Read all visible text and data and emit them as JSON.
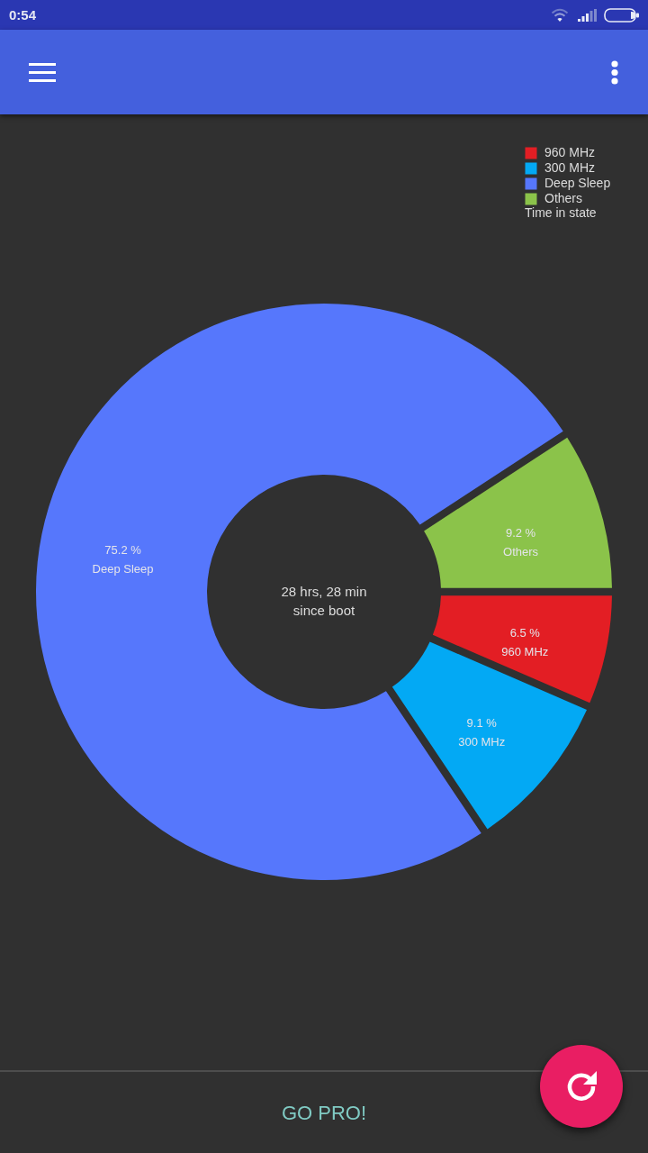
{
  "chart_data": {
    "type": "donut",
    "categories": [
      "960 MHz",
      "300 MHz",
      "Deep Sleep",
      "Others"
    ],
    "values": [
      6.5,
      9.1,
      75.2,
      9.2
    ],
    "colors": [
      "#e31e24",
      "#03a9f4",
      "#5677fc",
      "#8bc34a"
    ],
    "value_labels": [
      "6.5 %",
      "9.1 %",
      "75.2 %",
      "9.2 %"
    ],
    "legend": "top right",
    "legend_title": "Time in state",
    "annotations": [
      "28 hrs, 28 min\nsince boot",
      "0:54",
      "GO PRO!"
    ]
  }
}
